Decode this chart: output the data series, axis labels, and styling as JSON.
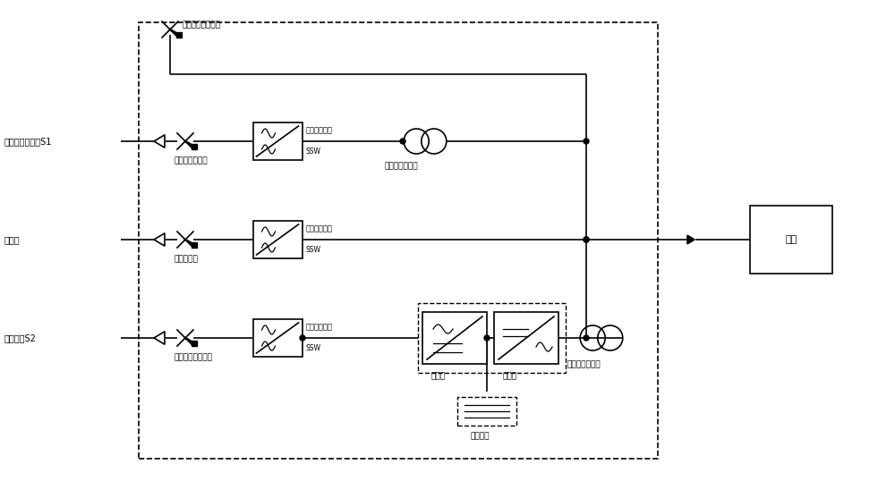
{
  "title": "",
  "bg_color": "#ffffff",
  "line_color": "#000000",
  "fig_width": 10.0,
  "fig_height": 5.38,
  "labels": {
    "main_source": "主电源输入模块S1",
    "generator": "发电机",
    "backup_source": "备用电源S2",
    "main_switch": "主电源输入开关",
    "gen_switch": "发电机开关",
    "backup_switch": "备用电源输入开关",
    "bypass_switch": "手动维修旁路开关",
    "ssw1": "静态切换开关",
    "ssw2": "静态切换开关",
    "ssw3": "静态切换开关",
    "ssw_label": "SSW",
    "transformer1": "第一隔离变压器",
    "transformer2": "第二隔离变压器",
    "rectifier": "整流器",
    "inverter": "逆变器",
    "supercap": "超级电容",
    "load": "负载"
  }
}
